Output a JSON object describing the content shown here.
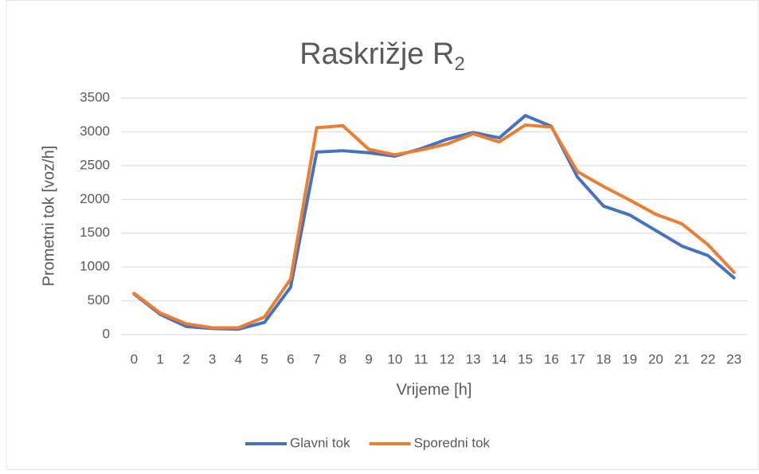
{
  "chart_data": {
    "type": "line",
    "title": "Raskrižje R",
    "title_subscript": "2",
    "x_label": "Vrijeme [h]",
    "y_label": "Prometni tok [voz/h]",
    "categories": [
      "0",
      "1",
      "2",
      "3",
      "4",
      "5",
      "6",
      "7",
      "8",
      "9",
      "10",
      "11",
      "12",
      "13",
      "14",
      "15",
      "16",
      "17",
      "18",
      "19",
      "20",
      "21",
      "22",
      "23"
    ],
    "series": [
      {
        "name": "Glavni tok",
        "color": "#4472c4",
        "values": [
          600,
          300,
          120,
          90,
          80,
          180,
          700,
          2700,
          2720,
          2690,
          2640,
          2750,
          2890,
          2990,
          2910,
          3240,
          3080,
          2330,
          1900,
          1770,
          1540,
          1310,
          1170,
          840
        ]
      },
      {
        "name": "Sporedni tok",
        "color": "#ed7d31",
        "values": [
          610,
          320,
          160,
          100,
          100,
          260,
          820,
          3060,
          3090,
          2740,
          2660,
          2730,
          2820,
          2970,
          2850,
          3100,
          3070,
          2410,
          2190,
          1990,
          1780,
          1640,
          1330,
          920
        ]
      }
    ],
    "ylim": [
      0,
      3500
    ],
    "yticks": [
      0,
      500,
      1000,
      1500,
      2000,
      2500,
      3000,
      3500
    ],
    "grid": true,
    "legend": "bottom"
  }
}
